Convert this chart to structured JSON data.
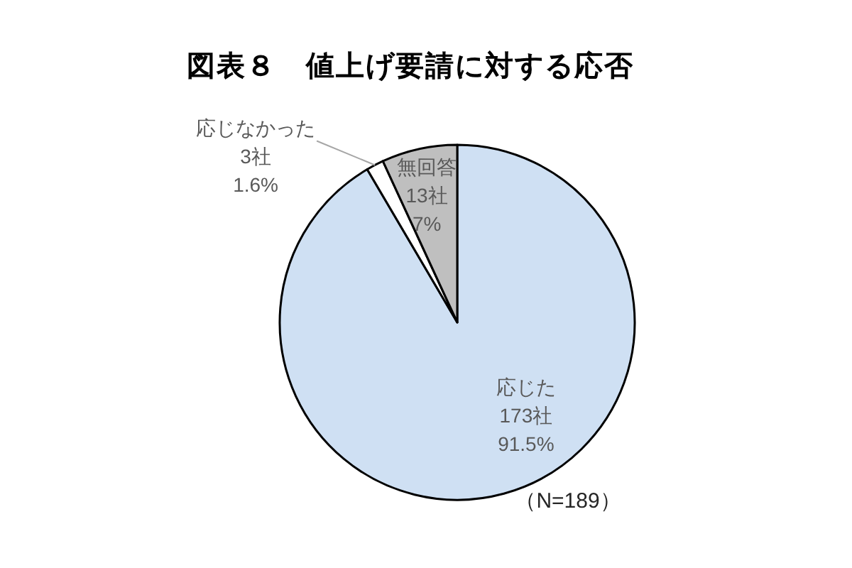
{
  "chart_data": {
    "type": "pie",
    "title": "図表８　値上げ要請に対する応否",
    "categories": [
      "応じた",
      "応じなかった",
      "無回答"
    ],
    "values": [
      173,
      3,
      13
    ],
    "value_labels": [
      "173社\n91.5%",
      "3社\n1.6%",
      "13社\n7%"
    ],
    "colors": [
      "#cfe0f3",
      "#ffffff",
      "#bfbfbf"
    ],
    "annotations": [
      "（N=189）"
    ]
  }
}
